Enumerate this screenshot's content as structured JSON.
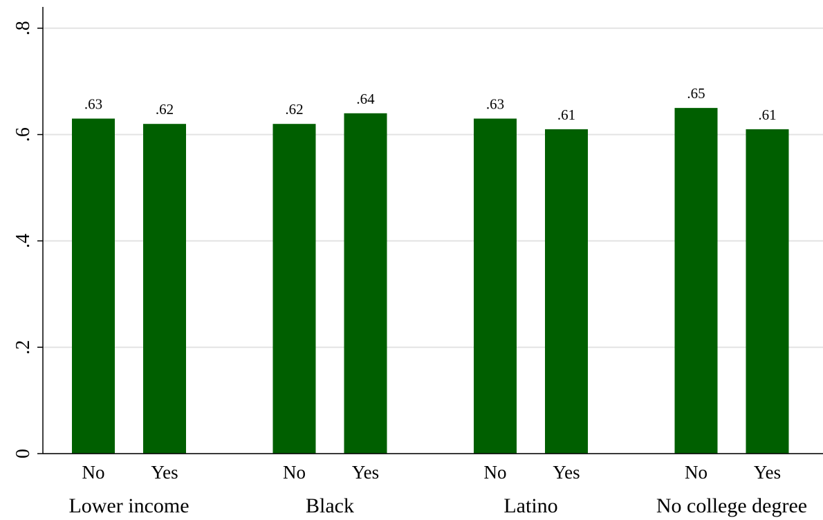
{
  "chart_data": {
    "type": "grouped-bar",
    "categories": [
      "Lower income",
      "Black",
      "Latino",
      "No college degree"
    ],
    "series": [
      {
        "name": "No",
        "color": "#005f00",
        "values": [
          0.63,
          0.62,
          0.63,
          0.65
        ],
        "value_labels": [
          ".63",
          ".62",
          ".63",
          ".65"
        ]
      },
      {
        "name": "Yes",
        "color": "#005f00",
        "values": [
          0.62,
          0.64,
          0.61,
          0.61
        ],
        "value_labels": [
          ".62",
          ".64",
          ".61",
          ".61"
        ]
      }
    ],
    "ylim": [
      0,
      0.84
    ],
    "yticks": [
      0,
      {
        "value": 0.2,
        "label": ".2"
      },
      {
        "value": 0.4,
        "label": ".4"
      },
      {
        "value": 0.6,
        "label": ".6"
      },
      {
        "value": 0.8,
        "label": ".8"
      }
    ],
    "grid": true
  }
}
